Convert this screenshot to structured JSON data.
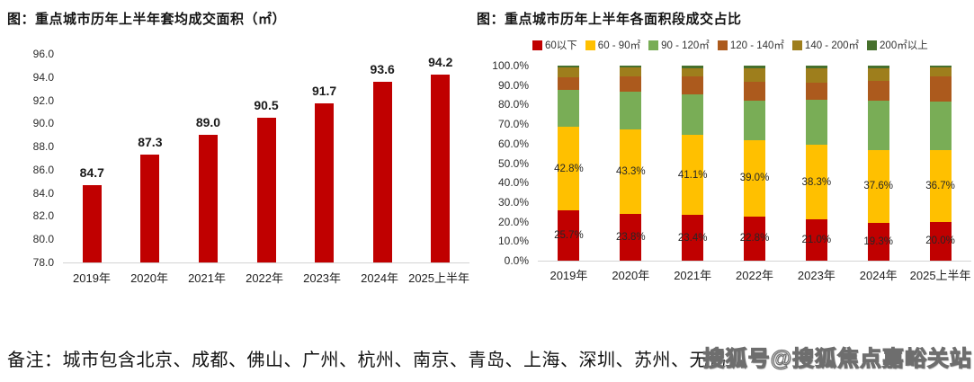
{
  "note": {
    "text": "备注：城市包含北京、成都、佛山、广州、杭州、南京、青岛、上海、深圳、苏州、无锡"
  },
  "watermark": {
    "text": "搜狐号@搜狐焦点嘉峪关站"
  },
  "colors": {
    "bar_red": "#c00000",
    "gold": "#ffc000",
    "green": "#79ad56",
    "dark_orange": "#ac5a1d",
    "dark_yellow": "#9e7e1c",
    "dark_green": "#46702d",
    "axis_line": "#d4d4d4"
  },
  "chart_data": [
    {
      "type": "bar",
      "title": "图：重点城市历年上半年套均成交面积（㎡）",
      "categories": [
        "2019年",
        "2020年",
        "2021年",
        "2022年",
        "2023年",
        "2024年",
        "2025上半年"
      ],
      "values": [
        84.7,
        87.3,
        89.0,
        90.5,
        91.7,
        93.6,
        94.2
      ],
      "data_labels": [
        "84.7",
        "87.3",
        "89.0",
        "90.5",
        "91.7",
        "93.6",
        "94.2"
      ],
      "bar_color": "#c00000",
      "xlabel": "",
      "ylabel": "",
      "ylim": [
        78,
        96
      ],
      "y_step": 2,
      "y_ticks": [
        "96.0",
        "94.0",
        "92.0",
        "90.0",
        "88.0",
        "86.0",
        "84.0",
        "82.0",
        "80.0",
        "78.0"
      ],
      "grid": false,
      "legend_position": "none"
    },
    {
      "type": "bar",
      "subtype": "stacked-100pct",
      "title": "图：重点城市历年上半年各面积段成交占比",
      "categories": [
        "2019年",
        "2020年",
        "2021年",
        "2022年",
        "2023年",
        "2024年",
        "2025上半年"
      ],
      "xlabel": "",
      "ylabel": "",
      "ylim": [
        0,
        100
      ],
      "y_step": 10,
      "y_ticks": [
        "100.0%",
        "90.0%",
        "80.0%",
        "70.0%",
        "60.0%",
        "50.0%",
        "40.0%",
        "30.0%",
        "20.0%",
        "10.0%",
        "0.0%"
      ],
      "grid": false,
      "legend_position": "top",
      "series": [
        {
          "name": "60以下",
          "color": "#c00000",
          "values": [
            25.7,
            23.8,
            23.4,
            22.8,
            21.0,
            19.3,
            20.0
          ],
          "labels": [
            "25.7%",
            "23.8%",
            "23.4%",
            "22.8%",
            "21.0%",
            "19.3%",
            "20.0%"
          ],
          "show_labels": true
        },
        {
          "name": "60 - 90㎡",
          "color": "#ffc000",
          "values": [
            42.8,
            43.3,
            41.1,
            39.0,
            38.3,
            37.6,
            36.7
          ],
          "labels": [
            "42.8%",
            "43.3%",
            "41.1%",
            "39.0%",
            "38.3%",
            "37.6%",
            "36.7%"
          ],
          "show_labels": true
        },
        {
          "name": "90 - 120㎡",
          "color": "#79ad56",
          "values": [
            19.0,
            19.6,
            21.0,
            20.4,
            23.0,
            25.0,
            25.1
          ],
          "show_labels": false
        },
        {
          "name": "120 - 140㎡",
          "color": "#ac5a1d",
          "values": [
            6.5,
            8.0,
            9.0,
            9.5,
            9.0,
            10.5,
            12.5
          ],
          "show_labels": false
        },
        {
          "name": "140 - 200㎡",
          "color": "#9e7e1c",
          "values": [
            5.0,
            4.5,
            4.0,
            6.8,
            7.2,
            6.1,
            4.7
          ],
          "show_labels": false
        },
        {
          "name": "200㎡以上",
          "color": "#46702d",
          "values": [
            1.0,
            0.8,
            1.5,
            1.5,
            1.5,
            1.5,
            1.0
          ],
          "show_labels": false
        }
      ]
    }
  ]
}
